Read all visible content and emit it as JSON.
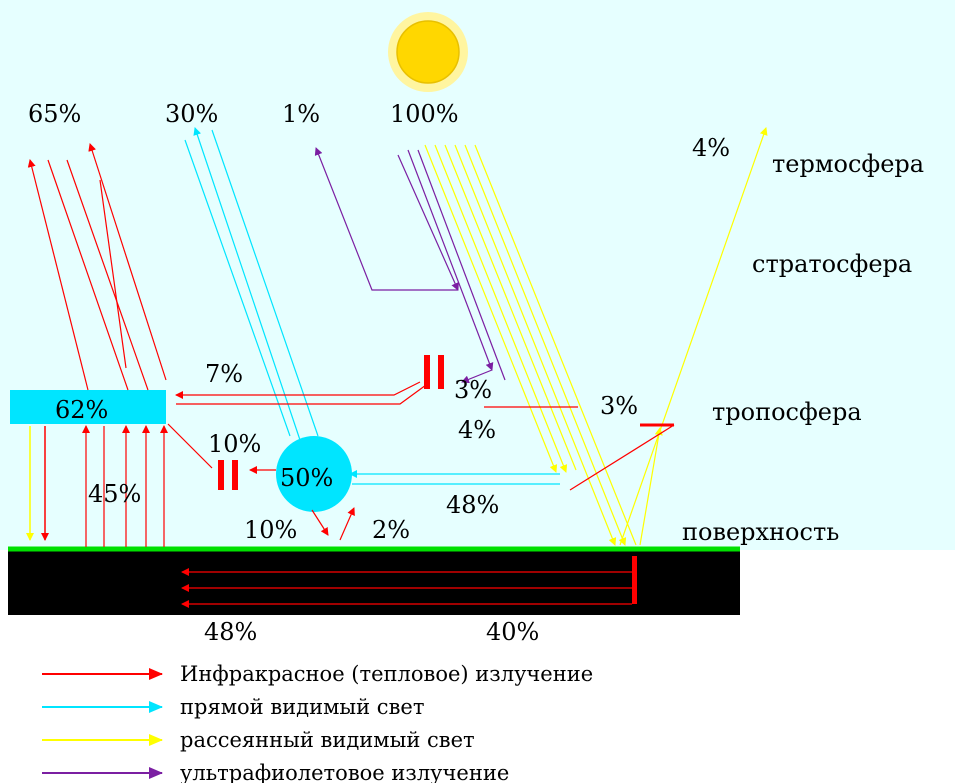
{
  "colors": {
    "sky": "#E6FFFF",
    "infrared": "#FF0000",
    "direct_visible": "#00E5FF",
    "scattered_visible": "#FFFF00",
    "ultraviolet": "#7B1FA2",
    "ground": "#000000",
    "surface_line": "#00E000",
    "sun": "#FFD700",
    "sun_halo": "#FFF5A0"
  },
  "top_labels": {
    "p65": "65%",
    "p30": "30%",
    "p1": "1%",
    "p100": "100%",
    "p4": "4%"
  },
  "layers": {
    "thermosphere": "термосфера",
    "stratosphere": "стратосфера",
    "troposphere": "тропосфера",
    "surface": "поверхность"
  },
  "values": {
    "cloud": "62%",
    "p7": "7%",
    "p3_uv": "3%",
    "p4_mid": "4%",
    "p3_right": "3%",
    "p10_top": "10%",
    "p45": "45%",
    "ball": "50%",
    "p48_mid": "48%",
    "p10_bottom": "10%",
    "p2": "2%",
    "p48_bottom": "48%",
    "p40_bottom": "40%"
  },
  "legend": [
    {
      "label": "Инфракрасное (тепловое) излучение",
      "color_key": "infrared"
    },
    {
      "label": "прямой видимый свет",
      "color_key": "direct_visible"
    },
    {
      "label": "рассеянный видимый свет",
      "color_key": "scattered_visible"
    },
    {
      "label": "ультрафиолетовое излучение",
      "color_key": "ultraviolet"
    }
  ]
}
